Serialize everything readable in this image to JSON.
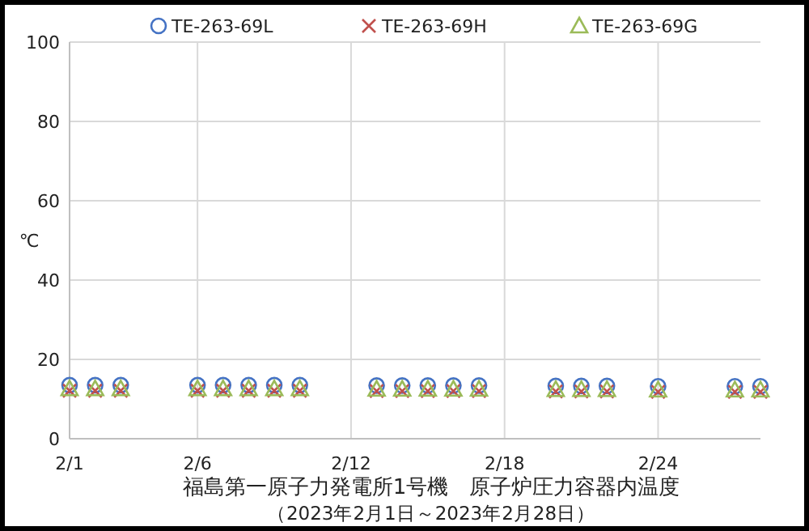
{
  "chart_data": {
    "type": "scatter",
    "title": "福島第一原子力発電所1号機　原子炉圧力容器内温度",
    "subtitle": "（2023年2月1日～2023年2月28日）",
    "ylabel": "℃",
    "x": [
      "2023-02-01",
      "2023-02-02",
      "2023-02-03",
      "2023-02-06",
      "2023-02-07",
      "2023-02-08",
      "2023-02-09",
      "2023-02-10",
      "2023-02-13",
      "2023-02-14",
      "2023-02-15",
      "2023-02-16",
      "2023-02-17",
      "2023-02-20",
      "2023-02-21",
      "2023-02-22",
      "2023-02-24",
      "2023-02-27",
      "2023-02-28"
    ],
    "series": [
      {
        "name": "TE-263-69L",
        "color": "#4472c4",
        "marker": "circle",
        "values": [
          13.5,
          13.5,
          13.5,
          13.5,
          13.5,
          13.5,
          13.5,
          13.5,
          13.4,
          13.4,
          13.4,
          13.4,
          13.4,
          13.3,
          13.3,
          13.3,
          13.2,
          13.2,
          13.2
        ]
      },
      {
        "name": "TE-263-69H",
        "color": "#c0504d",
        "marker": "cross",
        "values": [
          12.1,
          12.1,
          12.1,
          12.1,
          12.1,
          12.1,
          12.1,
          12.1,
          12.0,
          12.0,
          12.0,
          12.0,
          12.0,
          11.9,
          11.9,
          11.9,
          11.8,
          11.8,
          11.8
        ]
      },
      {
        "name": "TE-263-69G",
        "color": "#9bbb59",
        "marker": "triangle",
        "values": [
          12.6,
          12.6,
          12.6,
          12.6,
          12.6,
          12.6,
          12.6,
          12.6,
          12.5,
          12.5,
          12.5,
          12.5,
          12.5,
          12.4,
          12.4,
          12.4,
          12.3,
          12.3,
          12.3
        ]
      }
    ],
    "xlim": [
      "2023-02-01",
      "2023-02-28"
    ],
    "xticks": [
      {
        "value": "2023-02-01",
        "label": "2/1"
      },
      {
        "value": "2023-02-06",
        "label": "2/6"
      },
      {
        "value": "2023-02-12",
        "label": "2/12"
      },
      {
        "value": "2023-02-18",
        "label": "2/18"
      },
      {
        "value": "2023-02-24",
        "label": "2/24"
      }
    ],
    "ylim": [
      0,
      100
    ],
    "yticks": [
      0,
      20,
      40,
      60,
      80,
      100
    ],
    "grid": true,
    "legend": "top"
  }
}
